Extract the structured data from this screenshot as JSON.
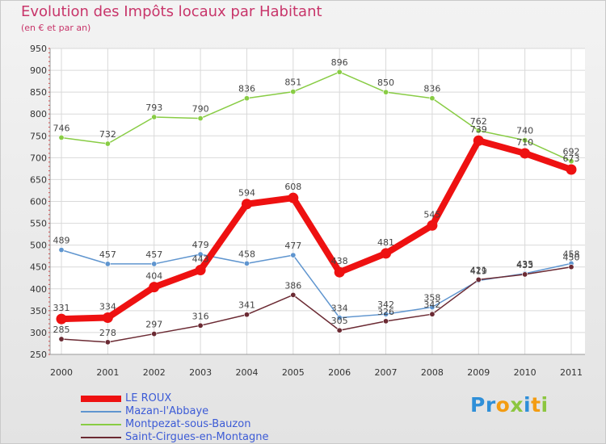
{
  "title": "Evolution des Impôts locaux par Habitant",
  "subtitle": "(en € et par an)",
  "logo_text": "Proxiti",
  "chart_data": {
    "type": "line",
    "title": "Evolution des Impôts locaux par Habitant",
    "subtitle": "(en € et par an)",
    "xlabel": "",
    "ylabel": "",
    "ylim": [
      250,
      950
    ],
    "y_ticks": [
      250,
      300,
      350,
      400,
      450,
      500,
      550,
      600,
      650,
      700,
      750,
      800,
      850,
      900,
      950
    ],
    "grid": true,
    "legend_position": "bottom-left",
    "categories": [
      "2000",
      "2001",
      "2002",
      "2003",
      "2004",
      "2005",
      "2006",
      "2007",
      "2008",
      "2009",
      "2010",
      "2011"
    ],
    "series": [
      {
        "name": "LE ROUX",
        "color": "#ee1111",
        "values": [
          331,
          334,
          404,
          443,
          594,
          608,
          438,
          481,
          545,
          739,
          710,
          673
        ]
      },
      {
        "name": "Mazan-l'Abbaye",
        "color": "#5f95cf",
        "values": [
          489,
          457,
          457,
          479,
          458,
          477,
          334,
          342,
          358,
          419,
          435,
          458
        ]
      },
      {
        "name": "Montpezat-sous-Bauzon",
        "color": "#88cc44",
        "values": [
          746,
          732,
          793,
          790,
          836,
          851,
          896,
          850,
          836,
          762,
          740,
          692
        ]
      },
      {
        "name": "Saint-Cirgues-en-Montagne",
        "color": "#6b2a33",
        "values": [
          285,
          278,
          297,
          316,
          341,
          386,
          305,
          326,
          342,
          421,
          433,
          450
        ]
      }
    ]
  }
}
